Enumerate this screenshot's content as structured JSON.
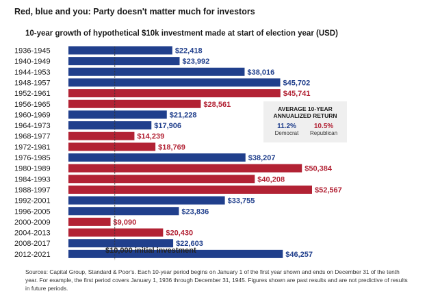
{
  "title": "Red, blue and you: Party doesn't matter much for investors",
  "chart_data": {
    "type": "bar",
    "orientation": "horizontal",
    "title": "10-year growth of hypothetical $10k investment made at start of election year (USD)",
    "baseline_label": "$10,000 initial investment",
    "baseline": 10000,
    "categories": [
      "1936-1945",
      "1940-1949",
      "1944-1953",
      "1948-1957",
      "1952-1961",
      "1956-1965",
      "1960-1969",
      "1964-1973",
      "1968-1977",
      "1972-1981",
      "1976-1985",
      "1980-1989",
      "1984-1993",
      "1988-1997",
      "1992-2001",
      "1996-2005",
      "2000-2009",
      "2004-2013",
      "2008-2017",
      "2012-2021"
    ],
    "values": [
      22418,
      23992,
      38016,
      45702,
      45741,
      28561,
      21228,
      17906,
      14239,
      18769,
      38207,
      50384,
      40208,
      52567,
      33755,
      23836,
      9090,
      20430,
      22603,
      46257
    ],
    "value_labels": [
      "$22,418",
      "$23,992",
      "$38,016",
      "$45,702",
      "$45,741",
      "$28,561",
      "$21,228",
      "$17,906",
      "$14,239",
      "$18,769",
      "$38,207",
      "$50,384",
      "$40,208",
      "$52,567",
      "$33,755",
      "$23,836",
      "$9,090",
      "$20,430",
      "$22,603",
      "$46,257"
    ],
    "party": [
      "Democrat",
      "Democrat",
      "Democrat",
      "Democrat",
      "Republican",
      "Republican",
      "Democrat",
      "Democrat",
      "Republican",
      "Republican",
      "Democrat",
      "Republican",
      "Republican",
      "Republican",
      "Democrat",
      "Democrat",
      "Republican",
      "Republican",
      "Democrat",
      "Democrat"
    ],
    "colors": {
      "Democrat": "#203f8c",
      "Republican": "#b22234"
    },
    "xlim": [
      0,
      52567
    ]
  },
  "legend": {
    "title": "AVERAGE 10-YEAR ANNUALIZED RETURN",
    "items": [
      {
        "value": "11.2%",
        "label": "Democrat",
        "color": "#203f8c"
      },
      {
        "value": "10.5%",
        "label": "Republican",
        "color": "#b22234"
      }
    ]
  },
  "sources": "Sources: Capital Group, Standard & Poor's. Each 10-year period begins on January 1 of the first year shown and ends on December 31 of the tenth year. For example, the first period covers January 1, 1936 through December 31, 1945. Figures shown are past results and are not predictive of results in future periods."
}
